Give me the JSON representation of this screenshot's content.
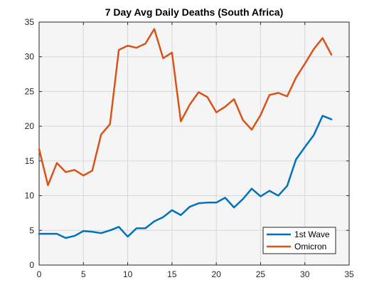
{
  "chart_data": {
    "type": "line",
    "title": "7 Day Avg Daily Deaths (South Africa)",
    "xlabel": "",
    "ylabel": "",
    "xlim": [
      0,
      35
    ],
    "ylim": [
      0,
      35
    ],
    "xticks": [
      0,
      5,
      10,
      15,
      20,
      25,
      30,
      35
    ],
    "yticks": [
      0,
      5,
      10,
      15,
      20,
      25,
      30,
      35
    ],
    "grid": true,
    "legend_position": "bottom-right",
    "series": [
      {
        "name": "1st Wave",
        "color": "#0072BD",
        "x": [
          0,
          1,
          2,
          3,
          4,
          5,
          6,
          7,
          8,
          9,
          10,
          11,
          12,
          13,
          14,
          15,
          16,
          17,
          18,
          19,
          20,
          21,
          22,
          23,
          24,
          25,
          26,
          27,
          28,
          29,
          30,
          31,
          32,
          33
        ],
        "values": [
          4.5,
          4.5,
          4.5,
          3.9,
          4.2,
          4.9,
          4.8,
          4.6,
          5.0,
          5.5,
          4.1,
          5.3,
          5.3,
          6.3,
          6.9,
          7.9,
          7.2,
          8.4,
          8.9,
          9.0,
          9.0,
          9.7,
          8.3,
          9.5,
          11.0,
          9.9,
          10.7,
          10.0,
          11.4,
          15.2,
          17.0,
          18.7,
          21.5,
          21.0
        ]
      },
      {
        "name": "Omicron",
        "color": "#D95319",
        "x": [
          0,
          1,
          2,
          3,
          4,
          5,
          6,
          7,
          8,
          9,
          10,
          11,
          12,
          13,
          14,
          15,
          16,
          17,
          18,
          19,
          20,
          21,
          22,
          23,
          24,
          25,
          26,
          27,
          28,
          29,
          30,
          31,
          32,
          33
        ],
        "values": [
          16.7,
          11.5,
          14.7,
          13.4,
          13.7,
          12.9,
          13.6,
          18.8,
          20.3,
          31.0,
          31.6,
          31.3,
          31.9,
          34.0,
          29.8,
          30.6,
          20.7,
          23.1,
          24.9,
          24.2,
          22.0,
          22.8,
          23.9,
          20.9,
          19.5,
          21.6,
          24.5,
          24.8,
          24.3,
          27.0,
          29.0,
          31.1,
          32.7,
          30.3
        ]
      }
    ]
  }
}
